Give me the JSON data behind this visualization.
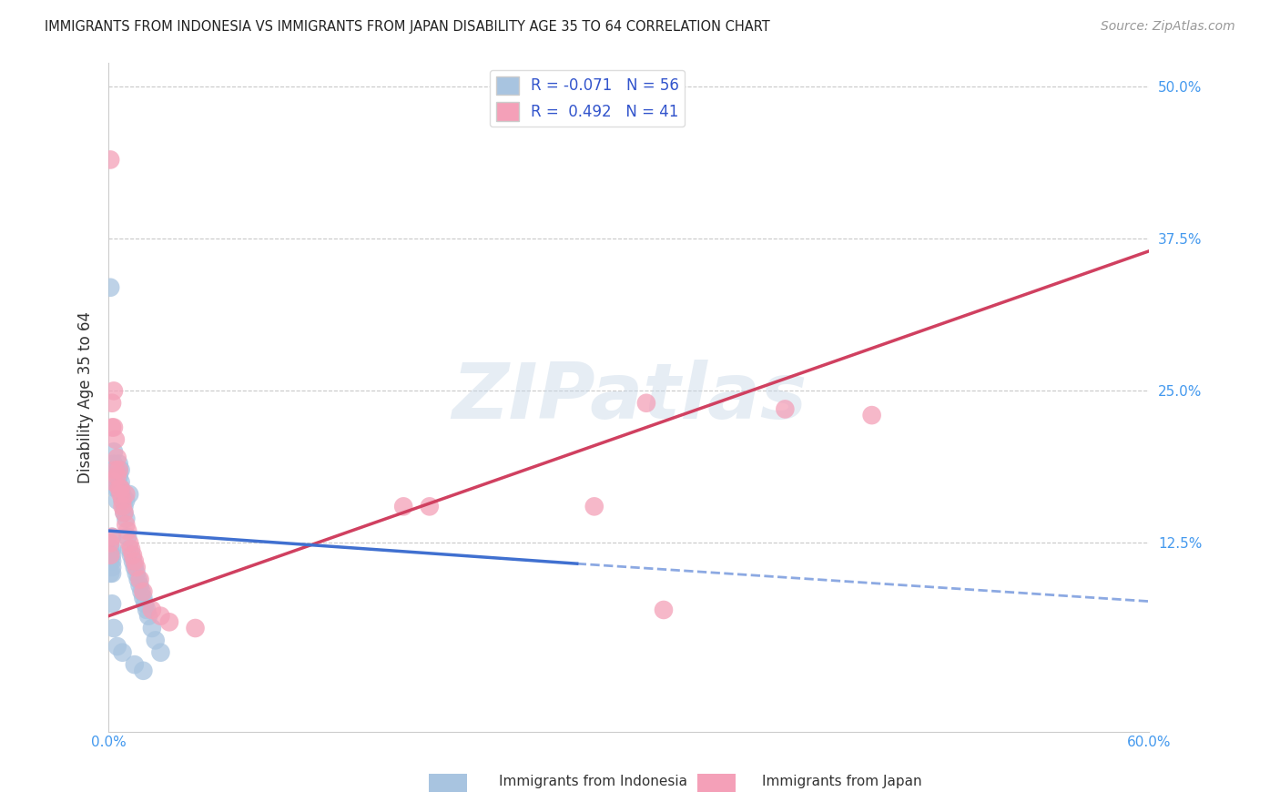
{
  "title": "IMMIGRANTS FROM INDONESIA VS IMMIGRANTS FROM JAPAN DISABILITY AGE 35 TO 64 CORRELATION CHART",
  "source": "Source: ZipAtlas.com",
  "ylabel": "Disability Age 35 to 64",
  "xlim": [
    0.0,
    0.6
  ],
  "ylim": [
    -0.03,
    0.52
  ],
  "y_ticks": [
    0.0,
    0.125,
    0.25,
    0.375,
    0.5
  ],
  "y_tick_labels": [
    "",
    "12.5%",
    "25.0%",
    "37.5%",
    "50.0%"
  ],
  "R_indonesia": -0.071,
  "N_indonesia": 56,
  "R_japan": 0.492,
  "N_japan": 41,
  "color_indonesia": "#a8c4e0",
  "color_japan": "#f4a0b8",
  "trendline_indonesia_solid_color": "#4070d0",
  "trendline_indonesia_dash_color": "#8aacdc",
  "trendline_japan_color": "#d04060",
  "watermark": "ZIPatlas",
  "indo_x": [
    0.001,
    0.001,
    0.001,
    0.001,
    0.001,
    0.002,
    0.002,
    0.002,
    0.002,
    0.002,
    0.002,
    0.003,
    0.003,
    0.003,
    0.003,
    0.004,
    0.004,
    0.004,
    0.005,
    0.005,
    0.005,
    0.006,
    0.006,
    0.006,
    0.007,
    0.007,
    0.007,
    0.008,
    0.008,
    0.009,
    0.009,
    0.01,
    0.01,
    0.011,
    0.012,
    0.012,
    0.013,
    0.014,
    0.015,
    0.016,
    0.017,
    0.018,
    0.019,
    0.02,
    0.021,
    0.022,
    0.023,
    0.025,
    0.027,
    0.03,
    0.002,
    0.003,
    0.005,
    0.008,
    0.015,
    0.02
  ],
  "indo_y": [
    0.335,
    0.12,
    0.115,
    0.11,
    0.1,
    0.13,
    0.12,
    0.115,
    0.11,
    0.105,
    0.1,
    0.185,
    0.175,
    0.19,
    0.2,
    0.185,
    0.18,
    0.17,
    0.175,
    0.17,
    0.16,
    0.19,
    0.185,
    0.18,
    0.185,
    0.17,
    0.175,
    0.165,
    0.16,
    0.155,
    0.15,
    0.16,
    0.145,
    0.13,
    0.165,
    0.12,
    0.115,
    0.11,
    0.105,
    0.1,
    0.095,
    0.09,
    0.085,
    0.08,
    0.075,
    0.07,
    0.065,
    0.055,
    0.045,
    0.035,
    0.075,
    0.055,
    0.04,
    0.035,
    0.025,
    0.02
  ],
  "japan_x": [
    0.001,
    0.001,
    0.001,
    0.002,
    0.002,
    0.002,
    0.003,
    0.003,
    0.003,
    0.004,
    0.004,
    0.005,
    0.005,
    0.006,
    0.006,
    0.007,
    0.007,
    0.008,
    0.008,
    0.009,
    0.01,
    0.01,
    0.011,
    0.012,
    0.013,
    0.014,
    0.015,
    0.016,
    0.018,
    0.02,
    0.025,
    0.03,
    0.035,
    0.05,
    0.185,
    0.31,
    0.39,
    0.17,
    0.28,
    0.32,
    0.44
  ],
  "japan_y": [
    0.44,
    0.125,
    0.115,
    0.24,
    0.22,
    0.13,
    0.25,
    0.22,
    0.175,
    0.21,
    0.185,
    0.195,
    0.18,
    0.185,
    0.17,
    0.17,
    0.165,
    0.16,
    0.155,
    0.15,
    0.165,
    0.14,
    0.135,
    0.125,
    0.12,
    0.115,
    0.11,
    0.105,
    0.095,
    0.085,
    0.07,
    0.065,
    0.06,
    0.055,
    0.155,
    0.24,
    0.235,
    0.155,
    0.155,
    0.07,
    0.23
  ],
  "indo_trend_x0": 0.0,
  "indo_trend_y0": 0.135,
  "indo_trend_x1": 0.27,
  "indo_trend_y1": 0.108,
  "indo_trend_dash_x1": 0.6,
  "indo_trend_dash_y1": 0.077,
  "japan_trend_x0": 0.0,
  "japan_trend_y0": 0.065,
  "japan_trend_x1": 0.6,
  "japan_trend_y1": 0.365
}
